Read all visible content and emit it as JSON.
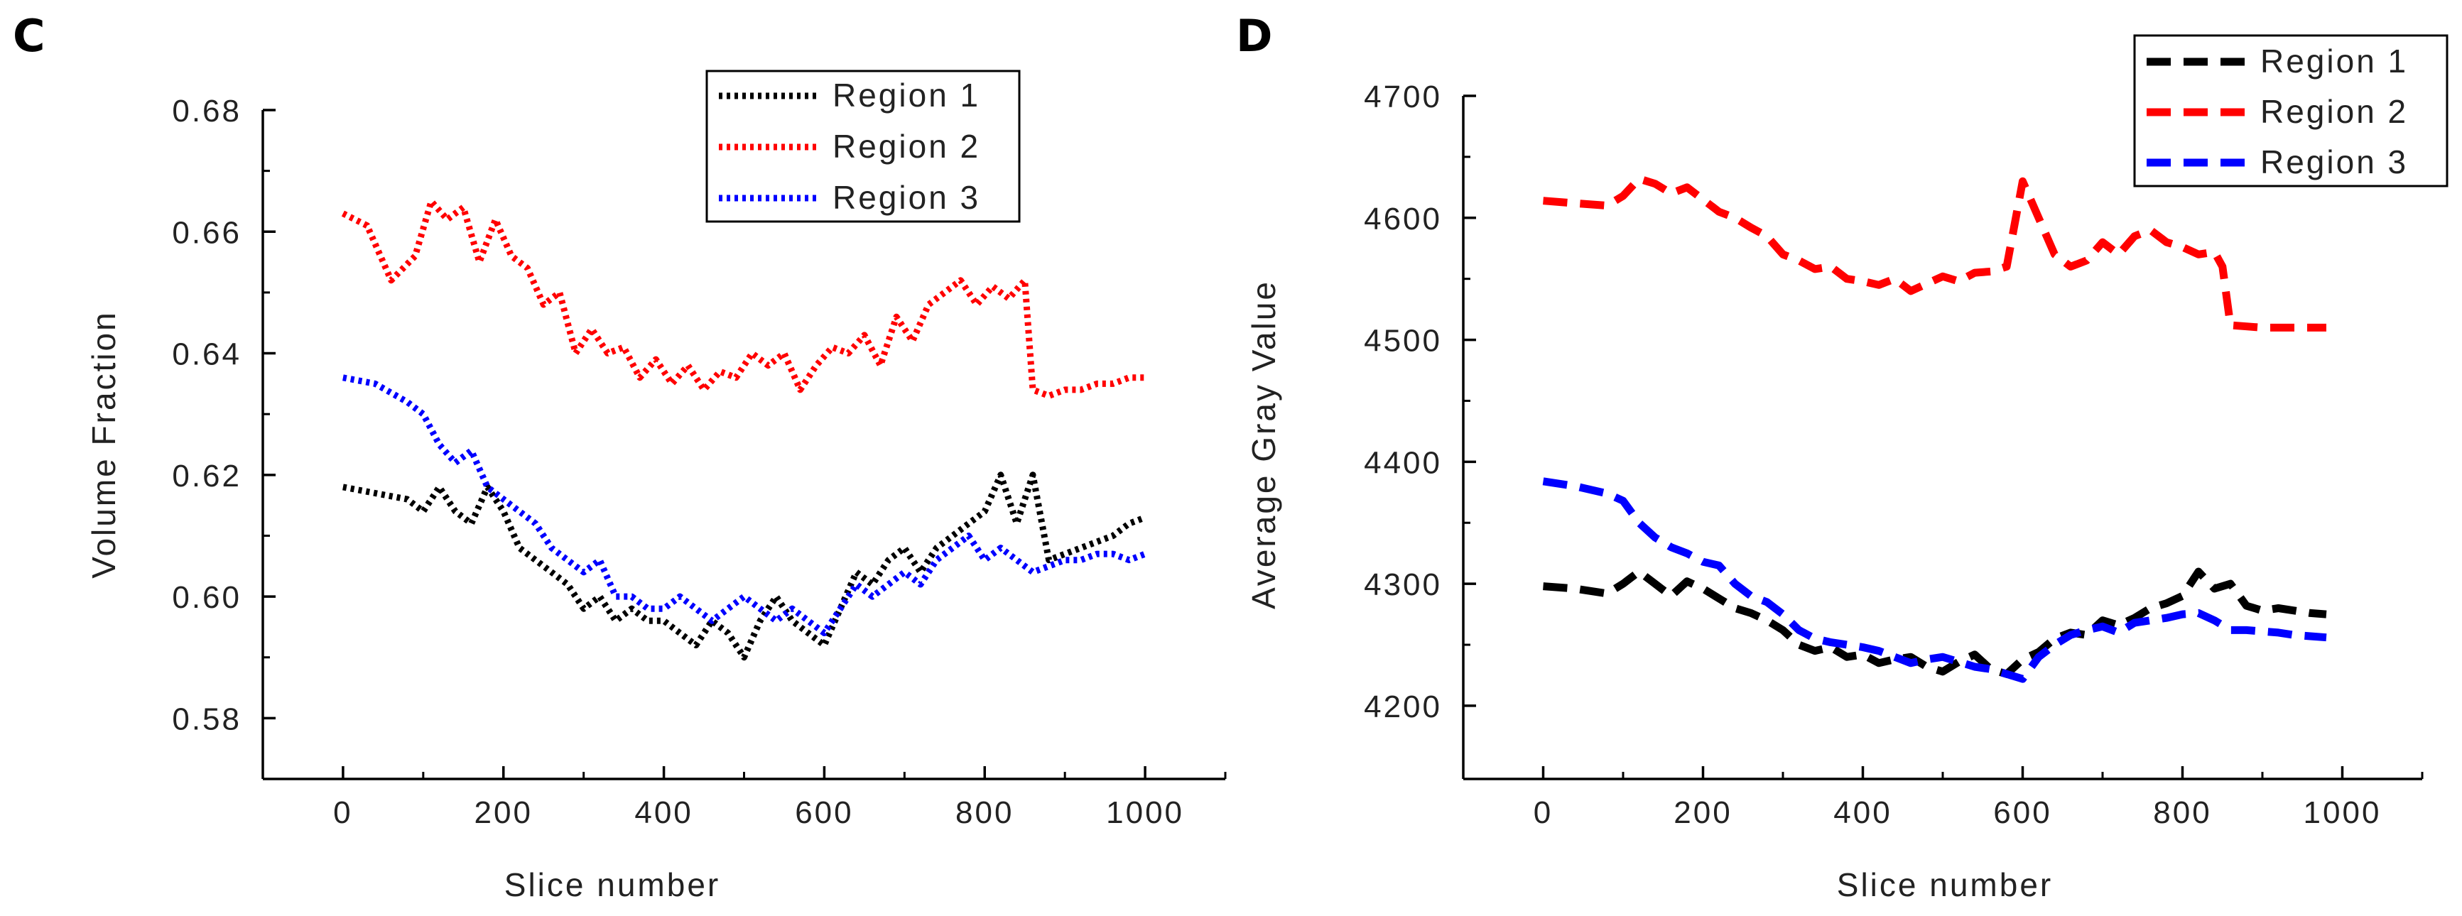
{
  "chart_data": [
    {
      "panel": "C",
      "type": "line",
      "line_style": "dotted",
      "xlabel": "Slice number",
      "ylabel": "Volume Fraction",
      "xlim": [
        -100,
        1100
      ],
      "ylim": [
        0.57,
        0.68
      ],
      "xticks": [
        0,
        200,
        400,
        600,
        800,
        1000
      ],
      "yticks": [
        0.58,
        0.6,
        0.62,
        0.64,
        0.66,
        0.68
      ],
      "ytick_labels": [
        "0.58",
        "0.60",
        "0.62",
        "0.64",
        "0.66",
        "0.68"
      ],
      "legend_position": "top-right",
      "grid": false,
      "series": [
        {
          "name": "Region 1",
          "color": "#000000",
          "x": [
            0,
            40,
            80,
            100,
            120,
            140,
            160,
            180,
            200,
            220,
            240,
            260,
            280,
            300,
            320,
            340,
            360,
            380,
            400,
            420,
            440,
            460,
            480,
            500,
            520,
            540,
            560,
            580,
            600,
            620,
            640,
            660,
            680,
            700,
            720,
            740,
            760,
            780,
            800,
            820,
            840,
            860,
            880,
            900,
            920,
            940,
            960,
            980,
            1000
          ],
          "y": [
            0.618,
            0.617,
            0.616,
            0.614,
            0.618,
            0.614,
            0.612,
            0.618,
            0.614,
            0.608,
            0.606,
            0.604,
            0.602,
            0.598,
            0.6,
            0.596,
            0.598,
            0.596,
            0.596,
            0.594,
            0.592,
            0.596,
            0.594,
            0.59,
            0.596,
            0.6,
            0.596,
            0.594,
            0.592,
            0.598,
            0.604,
            0.602,
            0.606,
            0.608,
            0.604,
            0.608,
            0.61,
            0.612,
            0.614,
            0.62,
            0.612,
            0.62,
            0.606,
            0.607,
            0.608,
            0.609,
            0.61,
            0.612,
            0.613
          ]
        },
        {
          "name": "Region 2",
          "color": "#ff0000",
          "x": [
            0,
            30,
            60,
            90,
            110,
            130,
            150,
            170,
            190,
            210,
            230,
            250,
            270,
            290,
            310,
            330,
            350,
            370,
            390,
            410,
            430,
            450,
            470,
            490,
            510,
            530,
            550,
            570,
            590,
            610,
            630,
            650,
            670,
            690,
            710,
            730,
            750,
            770,
            790,
            810,
            830,
            850,
            860,
            880,
            900,
            920,
            940,
            960,
            980,
            1000
          ],
          "y": [
            0.663,
            0.661,
            0.652,
            0.656,
            0.665,
            0.662,
            0.664,
            0.655,
            0.662,
            0.656,
            0.654,
            0.648,
            0.65,
            0.64,
            0.644,
            0.64,
            0.641,
            0.636,
            0.639,
            0.635,
            0.638,
            0.634,
            0.637,
            0.636,
            0.64,
            0.638,
            0.64,
            0.634,
            0.638,
            0.641,
            0.64,
            0.643,
            0.638,
            0.646,
            0.642,
            0.648,
            0.65,
            0.652,
            0.648,
            0.651,
            0.649,
            0.652,
            0.634,
            0.633,
            0.634,
            0.634,
            0.635,
            0.635,
            0.636,
            0.636
          ]
        },
        {
          "name": "Region 3",
          "color": "#0000ff",
          "x": [
            0,
            40,
            80,
            100,
            120,
            140,
            160,
            180,
            200,
            220,
            240,
            260,
            280,
            300,
            320,
            340,
            360,
            380,
            400,
            420,
            440,
            460,
            480,
            500,
            520,
            540,
            560,
            580,
            600,
            620,
            640,
            660,
            680,
            700,
            720,
            740,
            760,
            780,
            800,
            820,
            840,
            860,
            880,
            900,
            920,
            940,
            960,
            980,
            1000
          ],
          "y": [
            0.636,
            0.635,
            0.632,
            0.63,
            0.625,
            0.622,
            0.624,
            0.618,
            0.616,
            0.614,
            0.612,
            0.608,
            0.606,
            0.604,
            0.606,
            0.6,
            0.6,
            0.598,
            0.598,
            0.6,
            0.598,
            0.596,
            0.598,
            0.6,
            0.598,
            0.596,
            0.598,
            0.596,
            0.594,
            0.598,
            0.602,
            0.6,
            0.602,
            0.604,
            0.602,
            0.606,
            0.608,
            0.61,
            0.606,
            0.608,
            0.606,
            0.604,
            0.605,
            0.606,
            0.606,
            0.607,
            0.607,
            0.606,
            0.607
          ]
        }
      ]
    },
    {
      "panel": "D",
      "type": "line",
      "line_style": "dashed",
      "xlabel": "Slice number",
      "ylabel": "Average Gray Value",
      "xlim": [
        -100,
        1100
      ],
      "ylim": [
        4140,
        4700
      ],
      "xticks": [
        0,
        200,
        400,
        600,
        800,
        1000
      ],
      "yticks": [
        4200,
        4300,
        4400,
        4500,
        4600,
        4700
      ],
      "ytick_labels": [
        "4200",
        "4300",
        "4400",
        "4500",
        "4600",
        "4700"
      ],
      "legend_position": "top-right",
      "grid": false,
      "series": [
        {
          "name": "Region 1",
          "color": "#000000",
          "x": [
            0,
            40,
            80,
            100,
            120,
            140,
            160,
            180,
            200,
            220,
            240,
            260,
            280,
            300,
            320,
            340,
            360,
            380,
            400,
            420,
            440,
            460,
            480,
            500,
            520,
            540,
            560,
            580,
            600,
            620,
            640,
            660,
            680,
            700,
            720,
            740,
            760,
            780,
            800,
            820,
            840,
            860,
            880,
            900,
            920,
            940,
            960,
            980
          ],
          "y": [
            4298,
            4296,
            4292,
            4300,
            4310,
            4300,
            4290,
            4302,
            4296,
            4288,
            4280,
            4276,
            4270,
            4262,
            4250,
            4245,
            4248,
            4240,
            4242,
            4235,
            4238,
            4240,
            4232,
            4228,
            4236,
            4242,
            4230,
            4226,
            4238,
            4244,
            4255,
            4260,
            4258,
            4270,
            4266,
            4272,
            4280,
            4284,
            4290,
            4310,
            4296,
            4300,
            4282,
            4278,
            4280,
            4278,
            4276,
            4275
          ]
        },
        {
          "name": "Region 2",
          "color": "#ff0000",
          "x": [
            0,
            40,
            80,
            100,
            120,
            140,
            160,
            180,
            200,
            220,
            240,
            260,
            280,
            300,
            320,
            340,
            360,
            380,
            400,
            420,
            440,
            460,
            480,
            500,
            520,
            540,
            560,
            580,
            600,
            620,
            640,
            660,
            680,
            700,
            720,
            740,
            760,
            780,
            800,
            820,
            840,
            850,
            860,
            880,
            900,
            920,
            940,
            960,
            980
          ],
          "y": [
            4614,
            4612,
            4610,
            4618,
            4632,
            4628,
            4620,
            4625,
            4615,
            4605,
            4600,
            4592,
            4585,
            4570,
            4565,
            4558,
            4560,
            4550,
            4548,
            4545,
            4550,
            4540,
            4546,
            4552,
            4548,
            4555,
            4556,
            4560,
            4630,
            4600,
            4570,
            4560,
            4565,
            4580,
            4570,
            4585,
            4590,
            4580,
            4576,
            4570,
            4572,
            4560,
            4512,
            4511,
            4510,
            4510,
            4510,
            4510,
            4510
          ]
        },
        {
          "name": "Region 3",
          "color": "#0000ff",
          "x": [
            0,
            40,
            80,
            100,
            120,
            140,
            160,
            180,
            200,
            220,
            240,
            260,
            280,
            300,
            320,
            340,
            360,
            380,
            400,
            420,
            440,
            460,
            480,
            500,
            520,
            540,
            560,
            580,
            600,
            620,
            640,
            660,
            680,
            700,
            720,
            740,
            760,
            780,
            800,
            820,
            840,
            860,
            880,
            900,
            920,
            940,
            960,
            980
          ],
          "y": [
            4384,
            4380,
            4374,
            4368,
            4350,
            4338,
            4330,
            4325,
            4318,
            4315,
            4300,
            4290,
            4285,
            4275,
            4262,
            4255,
            4252,
            4250,
            4248,
            4245,
            4240,
            4235,
            4238,
            4240,
            4236,
            4232,
            4230,
            4226,
            4222,
            4240,
            4250,
            4258,
            4262,
            4265,
            4260,
            4268,
            4270,
            4272,
            4275,
            4276,
            4270,
            4262,
            4262,
            4261,
            4260,
            4258,
            4257,
            4256
          ]
        }
      ]
    }
  ]
}
